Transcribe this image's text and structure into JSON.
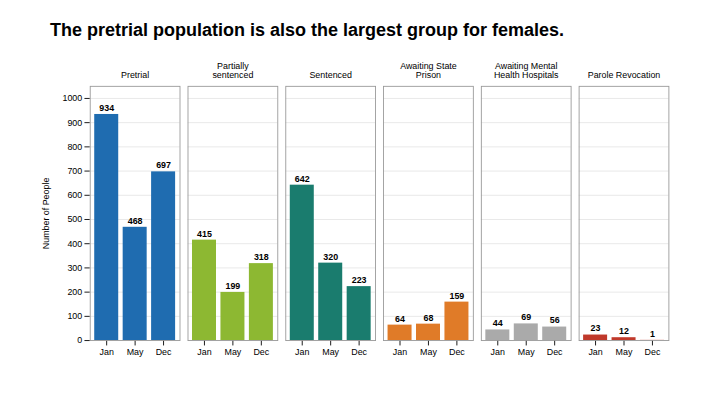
{
  "chart_data": {
    "type": "bar",
    "title": "The pretrial population is also the largest group for females.",
    "ylabel": "Number of People",
    "categories": [
      "Jan",
      "May",
      "Dec"
    ],
    "series": [
      {
        "name": "Pretrial",
        "color": "#1f6cb0",
        "values": [
          934,
          468,
          697
        ]
      },
      {
        "name": "Partially\nsentenced",
        "color": "#8db832",
        "values": [
          415,
          199,
          318
        ]
      },
      {
        "name": "Sentenced",
        "color": "#1a7c6e",
        "values": [
          642,
          320,
          223
        ]
      },
      {
        "name": "Awaiting State\nPrison",
        "color": "#e07b28",
        "values": [
          64,
          68,
          159
        ]
      },
      {
        "name": "Awaiting Mental\nHealth Hospitals",
        "color": "#aaaaaa",
        "values": [
          44,
          69,
          56
        ]
      },
      {
        "name": "Parole Revocation",
        "color": "#c0392b",
        "values": [
          23,
          12,
          1
        ]
      }
    ],
    "ylim": [
      0,
      1050
    ],
    "yticks": [
      0,
      100,
      200,
      300,
      400,
      500,
      600,
      700,
      800,
      900,
      1000
    ],
    "grid": true,
    "data_labels": true
  }
}
